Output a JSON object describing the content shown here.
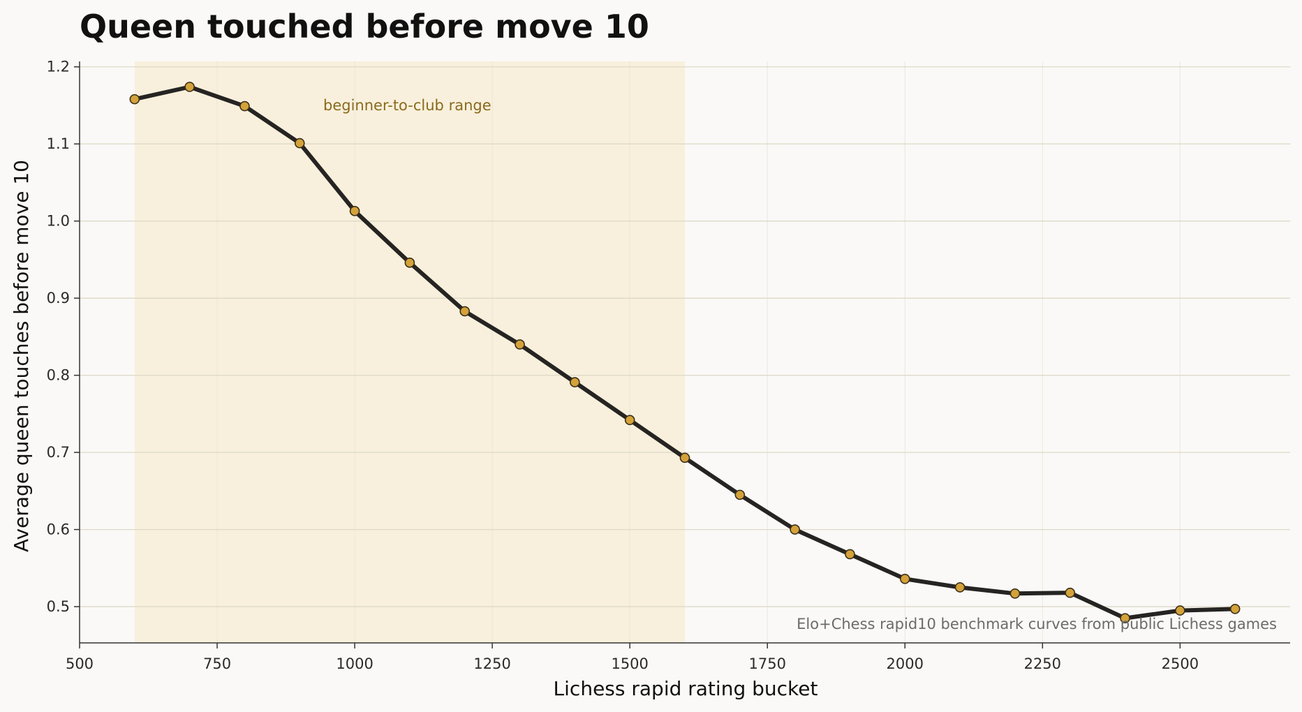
{
  "chart_data": {
    "type": "line",
    "title": "Queen touched before move 10",
    "xlabel": "Lichess rapid rating bucket",
    "ylabel": "Average queen touches before move 10",
    "xlim": [
      500,
      2700
    ],
    "ylim": [
      0.453,
      1.207
    ],
    "xticks": [
      500,
      750,
      1000,
      1250,
      1500,
      1750,
      2000,
      2250,
      2500
    ],
    "yticks": [
      0.5,
      0.6,
      0.7,
      0.8,
      0.9,
      1.0,
      1.1,
      1.2
    ],
    "grid": true,
    "highlight_band": {
      "x_start": 600,
      "x_end": 1600,
      "label": "beginner-to-club range"
    },
    "source_note": "Elo+Chess rapid10 benchmark curves from public Lichess games",
    "series": [
      {
        "x": [
          600,
          700,
          800,
          900,
          1000,
          1100,
          1200,
          1300,
          1400,
          1500,
          1600,
          1700,
          1800,
          1900,
          2000,
          2100,
          2200,
          2300,
          2400,
          2500,
          2600
        ],
        "y": [
          1.158,
          1.174,
          1.149,
          1.101,
          1.013,
          0.946,
          0.883,
          0.84,
          0.791,
          0.742,
          0.693,
          0.645,
          0.6,
          0.568,
          0.536,
          0.525,
          0.517,
          0.518,
          0.485,
          0.495,
          0.497
        ]
      }
    ],
    "colors": {
      "line": "#262422",
      "marker_fill": "#d4a23a",
      "marker_edge": "#3a2f1a",
      "band": "#f8f0dc",
      "band_text": "#8a6a1e",
      "grid": "#ddd9c7",
      "note_text": "#6b6b6b"
    }
  }
}
